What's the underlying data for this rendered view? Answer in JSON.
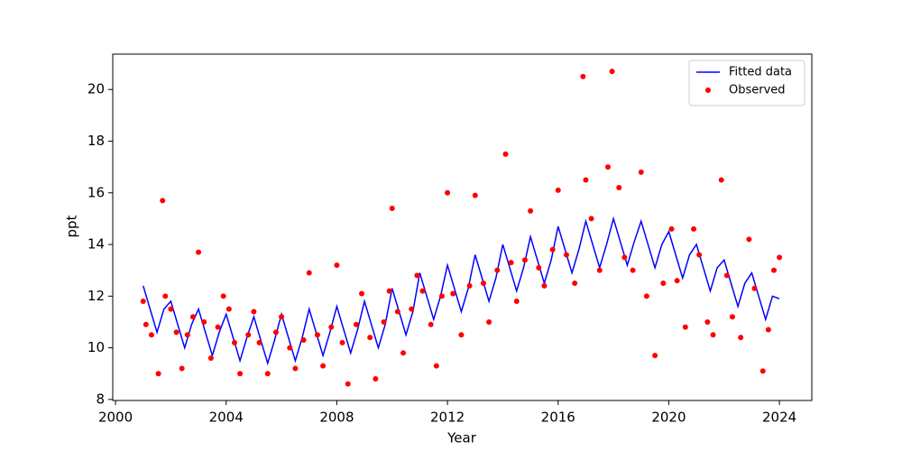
{
  "chart_data": {
    "type": "line-scatter",
    "xlabel": "Year",
    "ylabel": "ppt",
    "xlim": [
      1999.9,
      2025.17
    ],
    "ylim": [
      7.96,
      21.37
    ],
    "xticks": [
      2000,
      2004,
      2008,
      2012,
      2016,
      2020,
      2024
    ],
    "yticks": [
      8,
      10,
      12,
      14,
      16,
      18,
      20
    ],
    "legend": "upper right",
    "series": [
      {
        "name": "Fitted data",
        "type": "line",
        "color": "#0000ff",
        "x": [
          2001,
          2001.25,
          2001.5,
          2001.75,
          2002,
          2002.25,
          2002.5,
          2002.75,
          2003,
          2003.25,
          2003.5,
          2003.75,
          2004,
          2004.25,
          2004.5,
          2004.75,
          2005,
          2005.25,
          2005.5,
          2005.75,
          2006,
          2006.25,
          2006.5,
          2006.75,
          2007,
          2007.25,
          2007.5,
          2007.75,
          2008,
          2008.25,
          2008.5,
          2008.75,
          2009,
          2009.25,
          2009.5,
          2009.75,
          2010,
          2010.25,
          2010.5,
          2010.75,
          2011,
          2011.25,
          2011.5,
          2011.75,
          2012,
          2012.25,
          2012.5,
          2012.75,
          2013,
          2013.25,
          2013.5,
          2013.75,
          2014,
          2014.25,
          2014.5,
          2014.75,
          2015,
          2015.25,
          2015.5,
          2015.75,
          2016,
          2016.25,
          2016.5,
          2016.75,
          2017,
          2017.25,
          2017.5,
          2017.75,
          2018,
          2018.25,
          2018.5,
          2018.75,
          2019,
          2019.25,
          2019.5,
          2019.75,
          2020,
          2020.25,
          2020.5,
          2020.75,
          2021,
          2021.25,
          2021.5,
          2021.75,
          2022,
          2022.25,
          2022.5,
          2022.75,
          2023,
          2023.25,
          2023.5,
          2023.75,
          2024
        ],
        "values": [
          12.4,
          11.5,
          10.6,
          11.5,
          11.8,
          10.9,
          10.0,
          10.9,
          11.5,
          10.6,
          9.7,
          10.6,
          11.3,
          10.4,
          9.5,
          10.4,
          11.2,
          10.3,
          9.4,
          10.3,
          11.3,
          10.4,
          9.5,
          10.4,
          11.5,
          10.6,
          9.7,
          10.6,
          11.6,
          10.7,
          9.8,
          10.7,
          11.8,
          10.9,
          10.0,
          10.9,
          12.3,
          11.4,
          10.5,
          11.4,
          12.9,
          12.0,
          11.1,
          12.0,
          13.2,
          12.3,
          11.4,
          12.3,
          13.6,
          12.7,
          11.8,
          12.7,
          14.0,
          13.1,
          12.2,
          13.1,
          14.3,
          13.4,
          12.5,
          13.4,
          14.7,
          13.8,
          12.9,
          13.8,
          14.9,
          14.0,
          13.1,
          14.0,
          15.0,
          14.1,
          13.2,
          14.1,
          14.9,
          14.0,
          13.1,
          14.0,
          14.5,
          13.6,
          12.7,
          13.6,
          14.0,
          13.1,
          12.2,
          13.1,
          13.4,
          12.5,
          11.6,
          12.5,
          12.9,
          12.0,
          11.1,
          12.0,
          11.9
        ]
      },
      {
        "name": "Observed",
        "type": "scatter",
        "color": "#ff0000",
        "x": [
          2001.0,
          2001.1,
          2001.3,
          2001.55,
          2001.7,
          2001.8,
          2002.0,
          2002.2,
          2002.4,
          2002.6,
          2002.8,
          2003.0,
          2003.2,
          2003.45,
          2003.7,
          2003.9,
          2004.1,
          2004.3,
          2004.5,
          2004.8,
          2005.0,
          2005.2,
          2005.5,
          2005.8,
          2006.0,
          2006.3,
          2006.5,
          2006.8,
          2007.0,
          2007.3,
          2007.5,
          2007.8,
          2008.0,
          2008.2,
          2008.4,
          2008.7,
          2008.9,
          2009.2,
          2009.4,
          2009.7,
          2009.9,
          2010.0,
          2010.2,
          2010.4,
          2010.7,
          2010.9,
          2011.1,
          2011.4,
          2011.6,
          2011.8,
          2012.0,
          2012.2,
          2012.5,
          2012.8,
          2013.0,
          2013.3,
          2013.5,
          2013.8,
          2014.1,
          2014.3,
          2014.5,
          2014.8,
          2015.0,
          2015.3,
          2015.5,
          2015.8,
          2016.0,
          2016.3,
          2016.6,
          2016.9,
          2017.0,
          2017.2,
          2017.5,
          2017.8,
          2017.95,
          2018.2,
          2018.4,
          2018.7,
          2019.0,
          2019.2,
          2019.5,
          2019.8,
          2020.1,
          2020.3,
          2020.6,
          2020.9,
          2021.1,
          2021.4,
          2021.6,
          2021.9,
          2022.1,
          2022.3,
          2022.6,
          2022.9,
          2023.1,
          2023.4,
          2023.6,
          2023.8,
          2024.0
        ],
        "values": [
          11.8,
          10.9,
          10.5,
          9.0,
          15.7,
          12.0,
          11.5,
          10.6,
          9.2,
          10.5,
          11.2,
          13.7,
          11.0,
          9.6,
          10.8,
          12.0,
          11.5,
          10.2,
          9.0,
          10.5,
          11.4,
          10.2,
          9.0,
          10.6,
          11.2,
          10.0,
          9.2,
          10.3,
          12.9,
          10.5,
          9.3,
          10.8,
          13.2,
          10.2,
          8.6,
          10.9,
          12.1,
          10.4,
          8.8,
          11.0,
          12.2,
          15.4,
          11.4,
          9.8,
          11.5,
          12.8,
          12.2,
          10.9,
          9.3,
          12.0,
          16.0,
          12.1,
          10.5,
          12.4,
          15.9,
          12.5,
          11.0,
          13.0,
          17.5,
          13.3,
          11.8,
          13.4,
          15.3,
          13.1,
          12.4,
          13.8,
          16.1,
          13.6,
          12.5,
          20.5,
          16.5,
          15.0,
          13.0,
          17.0,
          20.7,
          16.2,
          13.5,
          13.0,
          16.8,
          12.0,
          9.7,
          12.5,
          14.6,
          12.6,
          10.8,
          14.6,
          13.6,
          11.0,
          10.5,
          16.5,
          12.8,
          11.2,
          10.4,
          14.2,
          12.3,
          9.1,
          10.7,
          13.0,
          13.5
        ]
      }
    ]
  }
}
